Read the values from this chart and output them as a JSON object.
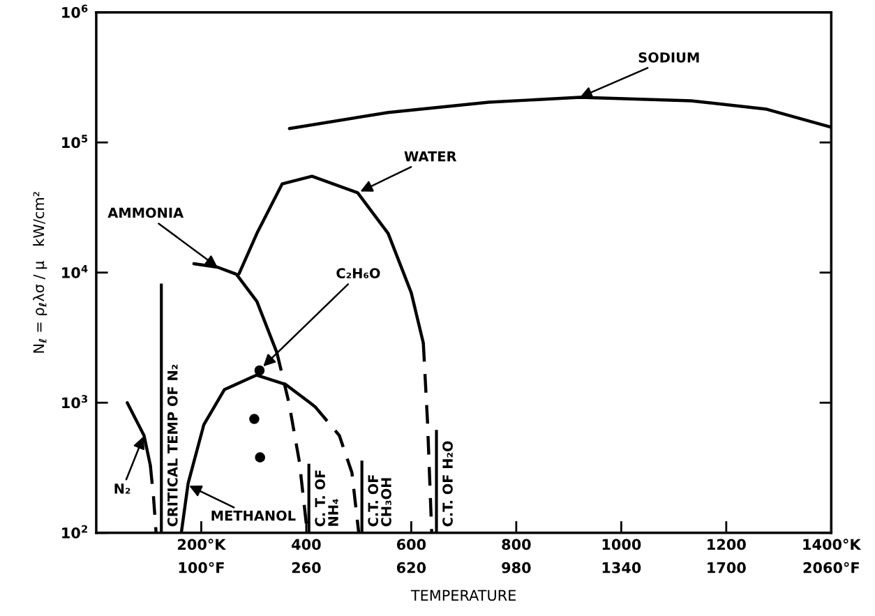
{
  "chart_data": {
    "type": "line",
    "xlabel": "TEMPERATURE",
    "ylabel": "N$_{ℓ}$ = ρ$_{ℓ}$λσ / μ   kW/cm²",
    "log": "y",
    "grid": false,
    "xlim": [
      0,
      1400
    ],
    "ylim": [
      100,
      1000000
    ],
    "xticks": [
      {
        "value": 200,
        "label": "200°K"
      },
      400,
      600,
      800,
      1000,
      1200,
      {
        "value": 1400,
        "label": "1400°K"
      }
    ],
    "x2lim": [
      -460,
      2060
    ],
    "x2ticks": [
      {
        "value": -100,
        "label": "100°F"
      },
      260,
      620,
      980,
      1340,
      1700,
      {
        "value": 2060,
        "label": "2060°F"
      }
    ],
    "yticks": [
      {
        "value": 100,
        "label": "10$^{2}$"
      },
      {
        "value": 1000,
        "label": "10$^{3}$"
      },
      {
        "value": 10000,
        "label": "10$^{4}$"
      },
      {
        "value": 100000,
        "label": "10$^{5}$"
      },
      {
        "value": 1000000,
        "label": "10$^{6}$"
      }
    ],
    "series": [
      {
        "color": "#000000",
        "line_style": "solid",
        "x": [
          368,
          556,
          748,
          921,
          1133,
          1277,
          1400
        ],
        "values": [
          128000,
          170000,
          204000,
          222000,
          209000,
          180000,
          131000
        ]
      },
      {
        "color": "#000000",
        "line_style": "solid",
        "x": [
          272,
          306,
          354,
          411,
          498,
          556,
          600,
          623
        ],
        "values": [
          9800,
          20000,
          48000,
          55000,
          41000,
          20000,
          7000,
          2870
        ]
      },
      {
        "color": "#000000",
        "line_style": "dashed",
        "x": [
          623,
          631,
          639
        ],
        "values": [
          2870,
          710,
          100
        ]
      },
      {
        "color": "#000000",
        "line_style": "solid",
        "x": [
          186,
          231,
          267,
          306,
          344
        ],
        "values": [
          11700,
          11000,
          9700,
          6000,
          2430
        ]
      },
      {
        "color": "#000000",
        "line_style": "dashed",
        "x": [
          344,
          367,
          387,
          402
        ],
        "values": [
          2430,
          1000,
          350,
          100
        ]
      },
      {
        "color": "#000000",
        "line_style": "solid",
        "x": [
          162,
          175,
          205,
          244,
          305,
          361,
          407,
          417
        ],
        "values": [
          100,
          240,
          680,
          1260,
          1630,
          1380,
          1000,
          930
        ]
      },
      {
        "color": "#000000",
        "line_style": "dashed",
        "x": [
          417,
          463,
          487,
          500
        ],
        "values": [
          930,
          560,
          290,
          100
        ]
      },
      {
        "color": "#000000",
        "line_style": "solid",
        "x": [
          59,
          91,
          103
        ],
        "values": [
          1000,
          560,
          330
        ]
      },
      {
        "color": "#000000",
        "line_style": "dashed",
        "x": [
          103,
          109,
          114
        ],
        "values": [
          330,
          190,
          100
        ]
      },
      {
        "type": "scatter",
        "color": "#000000",
        "marker": "circle",
        "x": [
          311,
          301,
          312
        ],
        "values": [
          1770,
          750,
          380
        ]
      }
    ],
    "ref_lines": [
      {
        "axis": "x",
        "value": 124,
        "label": "CRITICAL TEMP OF N₂",
        "color": "#000000"
      },
      {
        "axis": "x",
        "value": 405,
        "label": "C. T. OF\nNH₄",
        "color": "#000000"
      },
      {
        "axis": "x",
        "value": 506,
        "label": "C.T. OF\nCH₃OH",
        "color": "#000000"
      },
      {
        "axis": "x",
        "value": 648,
        "label": "C.T. OF H₂O",
        "color": "#000000"
      }
    ],
    "annotations": [
      {
        "text": "SODIUM",
        "x": 921,
        "y": 222000
      },
      {
        "text": "WATER",
        "x": 503,
        "y": 42000
      },
      {
        "text": "AMMONIA",
        "x": 231,
        "y": 11000
      },
      {
        "text": "C₂H₆O",
        "x": 318,
        "y": 1900
      },
      {
        "text": "METHANOL",
        "x": 177,
        "y": 230
      },
      {
        "text": "N₂",
        "x": 90,
        "y": 550
      }
    ]
  }
}
